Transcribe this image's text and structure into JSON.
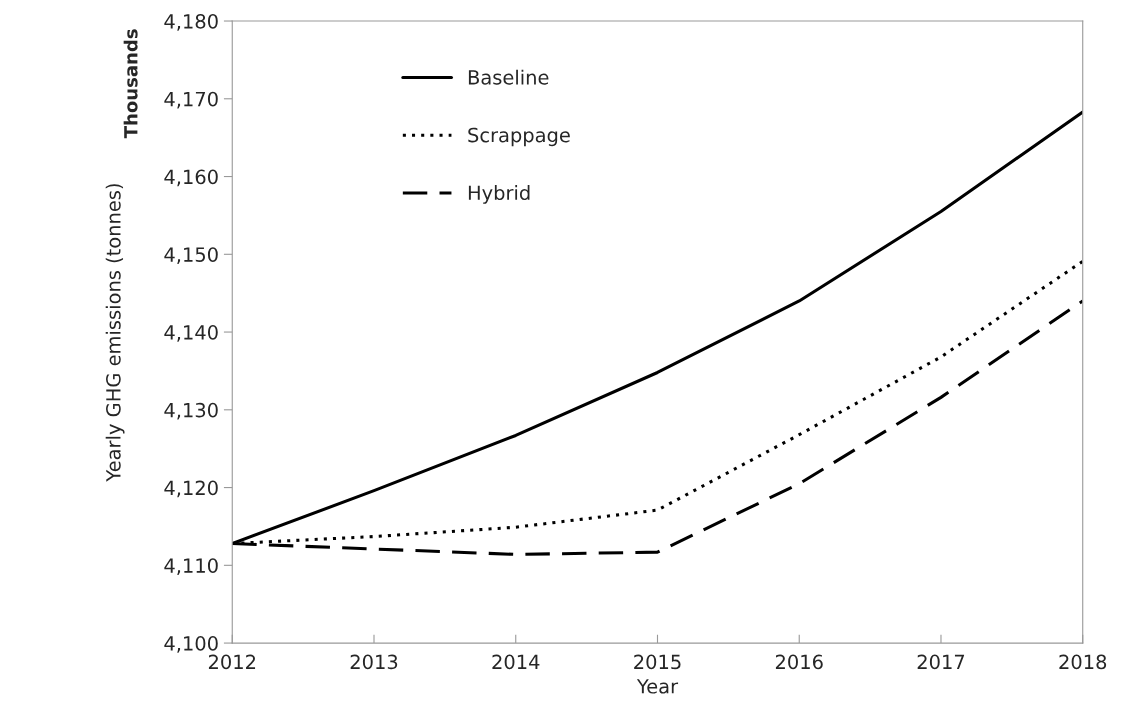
{
  "chart_data": {
    "type": "line",
    "xlabel": "Year",
    "ylabel": "Yearly GHG emissions (tonnes)",
    "annotations": [
      "Thousands"
    ],
    "x": [
      2012,
      2013,
      2014,
      2015,
      2016,
      2017,
      2018
    ],
    "series": [
      {
        "name": "Baseline",
        "color": "#000000",
        "line_style": "solid",
        "values": [
          4112.8,
          4119.6,
          4126.7,
          4134.8,
          4144.0,
          4155.5,
          4168.3
        ]
      },
      {
        "name": "Scrappage",
        "color": "#000000",
        "line_style": "dotted",
        "values": [
          4112.8,
          4113.7,
          4114.9,
          4117.1,
          4126.8,
          4136.8,
          4149.1
        ]
      },
      {
        "name": "Hybrid",
        "color": "#000000",
        "line_style": "dashed",
        "values": [
          4112.8,
          4112.1,
          4111.4,
          4111.7,
          4120.5,
          4131.6,
          4144.0
        ]
      }
    ],
    "xlim": [
      2012,
      2018
    ],
    "xticks": [
      2012,
      2013,
      2014,
      2015,
      2016,
      2017,
      2018
    ],
    "ylim": [
      4100,
      4180
    ],
    "yticks": [
      {
        "value": 4100,
        "label": "4,100"
      },
      {
        "value": 4110,
        "label": "4,110"
      },
      {
        "value": 4120,
        "label": "4,120"
      },
      {
        "value": 4130,
        "label": "4,130"
      },
      {
        "value": 4140,
        "label": "4,140"
      },
      {
        "value": 4150,
        "label": "4,150"
      },
      {
        "value": 4160,
        "label": "4,160"
      },
      {
        "value": 4170,
        "label": "4,170"
      },
      {
        "value": 4180,
        "label": "4,180"
      }
    ],
    "grid": false,
    "legend": "top left",
    "marker": "none"
  }
}
